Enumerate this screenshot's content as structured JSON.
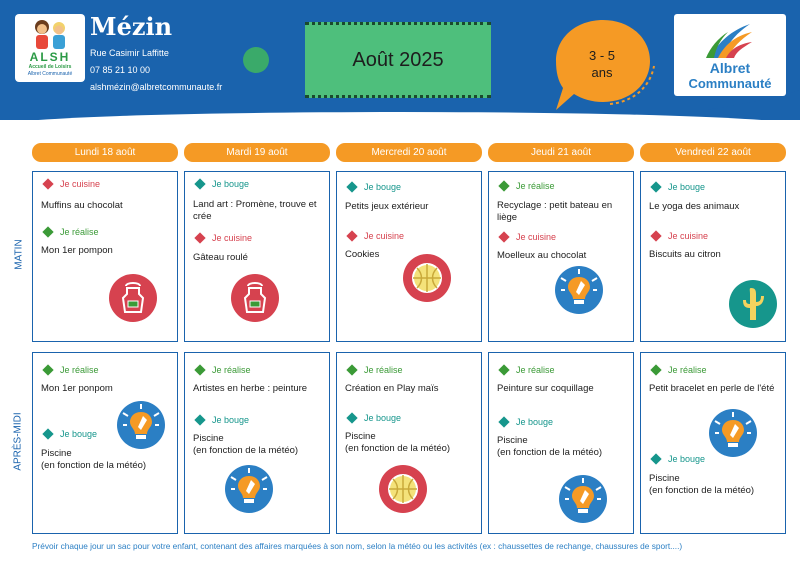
{
  "header": {
    "center_name": "Mézin",
    "address": "Rue Casimir Laffitte",
    "phone": "07 85 21 10 00",
    "email": "alshmézin@albretcommunaute.fr",
    "month": "Août 2025",
    "age_line1": "3 - 5",
    "age_line2": "ans",
    "logo_left": {
      "title": "ALSH",
      "subtitle": "Accueil de Loisirs",
      "org": "Albret Communauté"
    },
    "logo_right": {
      "line1": "Albret",
      "line2": "Communauté"
    }
  },
  "days": [
    "Lundi 18 août",
    "Mardi 19 août",
    "Mercredi 20 août",
    "Jeudi 21 août",
    "Vendredi 22 août"
  ],
  "periods": {
    "morning": "MATIN",
    "afternoon": "APRÈS-MIDI"
  },
  "morning": [
    {
      "entries": [
        {
          "category": "Je cuisine",
          "activity": "Muffins au chocolat"
        },
        {
          "category": "Je réalise",
          "activity": "Mon 1er pompon"
        }
      ],
      "icon": "apron-icon"
    },
    {
      "entries": [
        {
          "category": "Je bouge",
          "activity": "Land art : Promène, trouve et crée"
        },
        {
          "category": "Je cuisine",
          "activity": "Gâteau roulé"
        }
      ],
      "icon": "apron-icon"
    },
    {
      "entries": [
        {
          "category": "Je bouge",
          "activity": "Petits jeux extérieur"
        },
        {
          "category": "Je cuisine",
          "activity": "Cookies"
        }
      ],
      "icon": "ball-icon"
    },
    {
      "entries": [
        {
          "category": "Je réalise",
          "activity": "Recyclage : petit bateau en liège"
        },
        {
          "category": "Je cuisine",
          "activity": "Moelleux au chocolat"
        }
      ],
      "icon": "creative-bulb-icon"
    },
    {
      "entries": [
        {
          "category": "Je bouge",
          "activity": "Le yoga des animaux"
        },
        {
          "category": "Je cuisine",
          "activity": "Biscuits au citron"
        }
      ],
      "icon": "yoga-cactus-icon"
    }
  ],
  "afternoon": [
    {
      "entries": [
        {
          "category": "Je réalise",
          "activity": "Mon 1er ponpom"
        },
        {
          "category": "Je bouge",
          "activity": "Piscine\n(en fonction de la météo)"
        }
      ],
      "icon": "creative-bulb-icon"
    },
    {
      "entries": [
        {
          "category": "Je réalise",
          "activity": "Artistes en herbe : peinture"
        },
        {
          "category": "Je bouge",
          "activity": "Piscine\n(en fonction de la météo)"
        }
      ],
      "icon": "creative-bulb-icon"
    },
    {
      "entries": [
        {
          "category": "Je réalise",
          "activity": "Création en Play maïs"
        },
        {
          "category": "Je bouge",
          "activity": "Piscine\n(en fonction de la météo)"
        }
      ],
      "icon": "ball-icon"
    },
    {
      "entries": [
        {
          "category": "Je réalise",
          "activity": "Peinture sur coquillage"
        },
        {
          "category": "Je bouge",
          "activity": "Piscine\n(en fonction de la météo)"
        }
      ],
      "icon": "creative-bulb-icon"
    },
    {
      "entries": [
        {
          "category": "Je réalise",
          "activity": "Petit bracelet en perle de l'été"
        },
        {
          "category": "Je bouge",
          "activity": "Piscine\n(en fonction de la météo)"
        }
      ],
      "icon": "creative-bulb-icon"
    }
  ],
  "footer": "Prévoir chaque jour un sac pour votre enfant, contenant des affaires marquées à son nom, selon la météo ou les activités (ex : chaussettes de rechange, chaussures de sport....)",
  "colors": {
    "primary_blue": "#1a63ad",
    "orange": "#f59a25",
    "green_box": "#4ebf7c",
    "je_cuisine": "#d6424f",
    "je_bouge": "#16968c",
    "je_realise": "#3b9a37"
  }
}
